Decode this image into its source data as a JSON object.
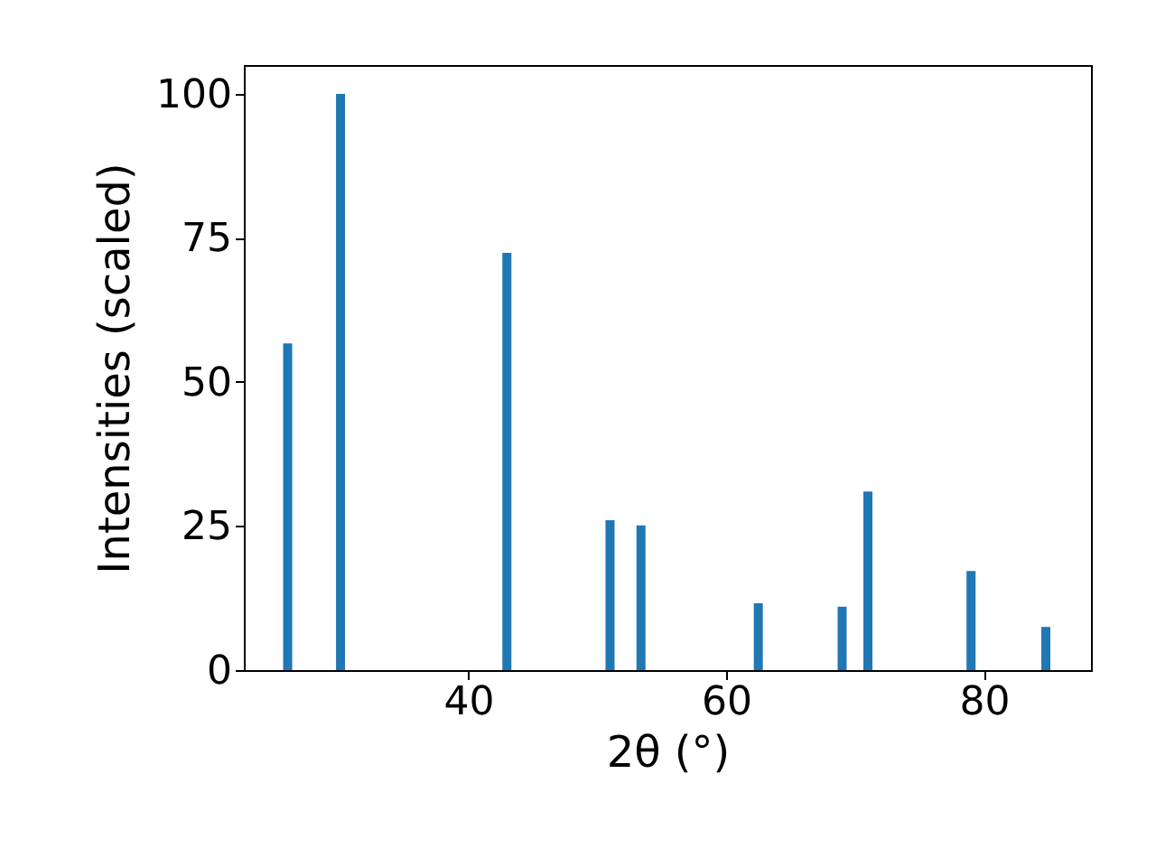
{
  "chart_data": {
    "type": "bar",
    "xlabel": "2θ (°)",
    "ylabel": "Intensities (scaled)",
    "x": [
      26.0,
      30.1,
      43.0,
      51.0,
      53.4,
      62.5,
      69.0,
      71.0,
      79.0,
      84.8
    ],
    "values": [
      56.7,
      100,
      72.4,
      26.0,
      25.1,
      11.6,
      11.0,
      31.0,
      17.2,
      7.5
    ],
    "color": "#1f77b4",
    "xlim": [
      22.6,
      88.3
    ],
    "xticks": [
      40,
      60,
      80
    ],
    "ylim": [
      0,
      105
    ],
    "yticks": [
      0,
      25,
      50,
      75,
      100
    ],
    "grid": false
  }
}
